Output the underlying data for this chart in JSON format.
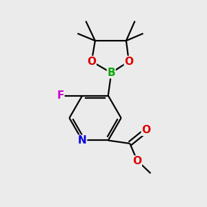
{
  "bg_color": "#ebebeb",
  "atom_colors": {
    "C": "#000000",
    "N": "#0000dd",
    "O": "#dd0000",
    "B": "#00aa00",
    "F": "#cc00cc"
  },
  "bond_color": "#000000",
  "bond_width": 1.6,
  "figsize": [
    3.0,
    3.0
  ],
  "dpi": 100,
  "font_size": 10
}
